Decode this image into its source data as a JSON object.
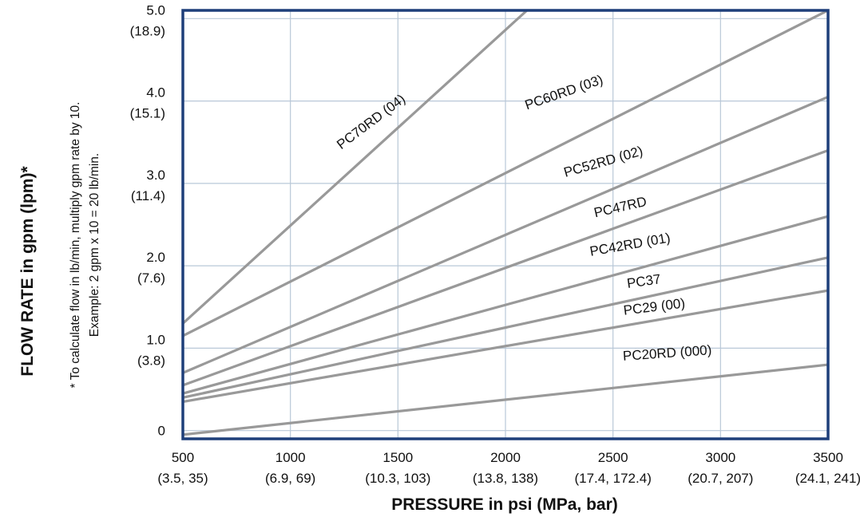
{
  "chart_data": {
    "type": "line",
    "title": "",
    "xlabel": "PRESSURE in psi (MPa, bar)",
    "ylabel": "FLOW RATE in gpm (lpm)*",
    "footnote": [
      "* To calculate flow in lb/min, multiply gpm rate by 10.",
      "Example: 2 gpm x 10 = 20 lb/min."
    ],
    "xlim": [
      500,
      3500
    ],
    "ylim": [
      -0.1,
      5.1
    ],
    "x_ticks": [
      {
        "value": 500,
        "label": "500",
        "sublabel": "(3.5, 35)"
      },
      {
        "value": 1000,
        "label": "1000",
        "sublabel": "(6.9, 69)"
      },
      {
        "value": 1500,
        "label": "1500",
        "sublabel": "(10.3, 103)"
      },
      {
        "value": 2000,
        "label": "2000",
        "sublabel": "(13.8, 138)"
      },
      {
        "value": 2500,
        "label": "2500",
        "sublabel": "(17.4, 172.4)"
      },
      {
        "value": 3000,
        "label": "3000",
        "sublabel": "(20.7, 207)"
      },
      {
        "value": 3500,
        "label": "3500",
        "sublabel": "(24.1, 241)"
      }
    ],
    "y_ticks": [
      {
        "value": 0,
        "label": "0",
        "sublabel": ""
      },
      {
        "value": 1,
        "label": "1.0",
        "sublabel": "(3.8)"
      },
      {
        "value": 2,
        "label": "2.0",
        "sublabel": "(7.6)"
      },
      {
        "value": 3,
        "label": "3.0",
        "sublabel": "(11.4)"
      },
      {
        "value": 4,
        "label": "4.0",
        "sublabel": "(15.1)"
      },
      {
        "value": 5,
        "label": "5.0",
        "sublabel": "(18.9)"
      }
    ],
    "grid": true,
    "series": [
      {
        "name": "PC70RD (04)",
        "x": [
          500,
          2100
        ],
        "y": [
          1.3,
          5.1
        ]
      },
      {
        "name": "PC60RD (03)",
        "x": [
          500,
          3500
        ],
        "y": [
          1.15,
          5.1
        ]
      },
      {
        "name": "PC52RD (02)",
        "x": [
          500,
          3500
        ],
        "y": [
          0.7,
          4.05
        ]
      },
      {
        "name": "PC47RD",
        "x": [
          500,
          3500
        ],
        "y": [
          0.55,
          3.4
        ]
      },
      {
        "name": "PC42RD (01)",
        "x": [
          500,
          3500
        ],
        "y": [
          0.45,
          2.6
        ]
      },
      {
        "name": "PC37",
        "x": [
          500,
          3500
        ],
        "y": [
          0.4,
          2.1
        ]
      },
      {
        "name": "PC29 (00)",
        "x": [
          500,
          3500
        ],
        "y": [
          0.35,
          1.7
        ]
      },
      {
        "name": "PC20RD (000)",
        "x": [
          500,
          3500
        ],
        "y": [
          -0.05,
          0.8
        ]
      }
    ],
    "colors": {
      "series": "#999999",
      "grid": "#b9c8d8",
      "frame": "#1e3f7a"
    }
  }
}
